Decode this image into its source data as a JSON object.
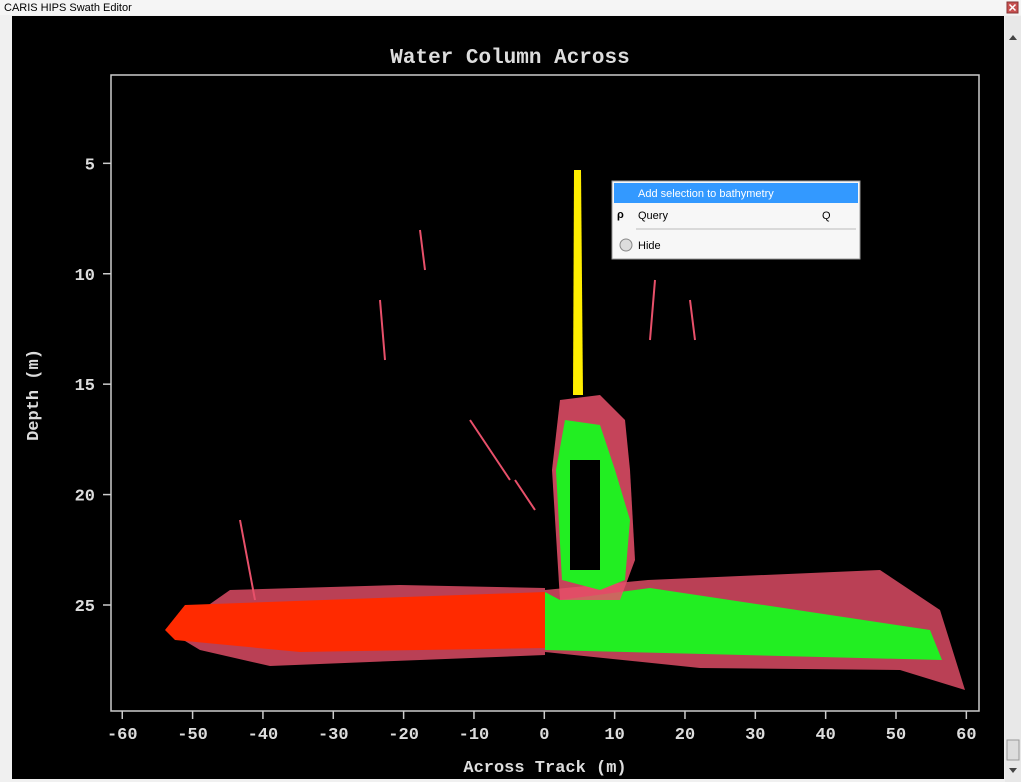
{
  "window": {
    "title": "CARIS HIPS Swath Editor"
  },
  "chart_data": {
    "type": "scatter",
    "title": "Water Column Across",
    "xlabel": "Across Track (m)",
    "ylabel": "Depth (m)",
    "xlim": [
      -61.6,
      61.8
    ],
    "xticks": [
      -60,
      -50,
      -40,
      -30,
      -20,
      -10,
      0,
      10,
      20,
      30,
      40,
      50,
      60
    ],
    "ylim": [
      1,
      29.8
    ],
    "yticks": [
      5,
      10,
      15,
      20,
      25
    ],
    "y_inverted": true
  },
  "context_menu": {
    "items": [
      {
        "label": "Add selection to bathymetry"
      },
      {
        "label": "Query",
        "shortcut": "Q"
      },
      {
        "label": "Hide"
      }
    ]
  }
}
